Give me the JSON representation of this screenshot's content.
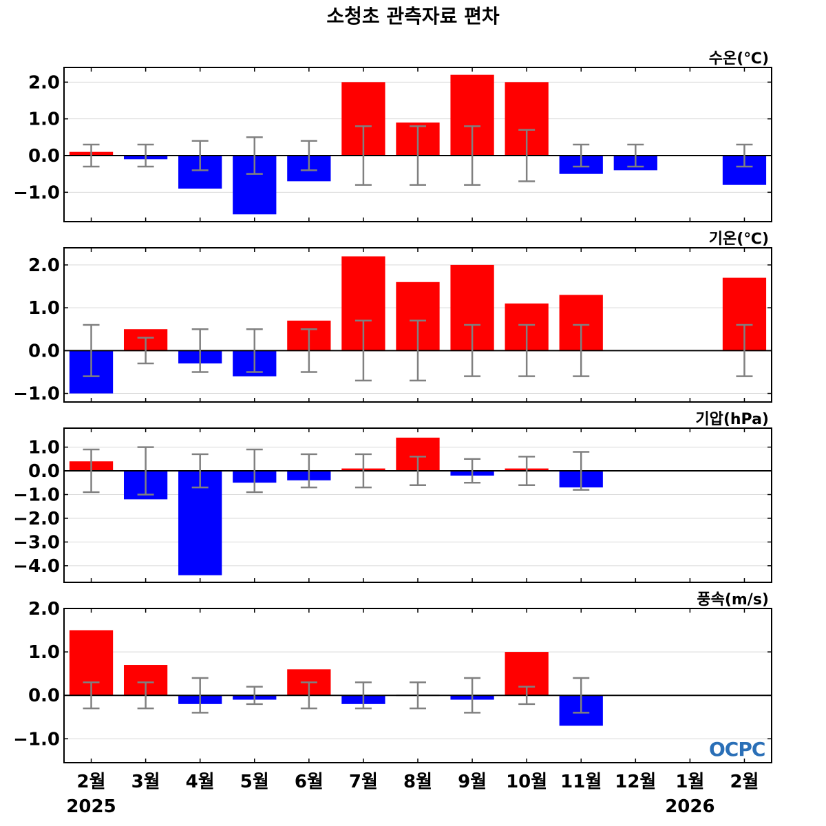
{
  "title": "소청초 관측자료 편차",
  "logo": "OCPC",
  "colors": {
    "positive": "#ff0000",
    "negative": "#0000ff",
    "error_bar": "#808080",
    "grid": "#d9d9d9"
  },
  "x_axis": {
    "months": [
      "2월",
      "3월",
      "4월",
      "5월",
      "6월",
      "7월",
      "8월",
      "9월",
      "10월",
      "11월",
      "12월",
      "1월",
      "2월"
    ],
    "years": [
      {
        "label": "2025",
        "index": 0
      },
      {
        "label": "2026",
        "index": 11
      }
    ]
  },
  "chart_data": [
    {
      "type": "bar",
      "unit_label": "수온(℃)",
      "categories": [
        "2월",
        "3월",
        "4월",
        "5월",
        "6월",
        "7월",
        "8월",
        "9월",
        "10월",
        "11월",
        "12월",
        "1월",
        "2월"
      ],
      "values": [
        0.1,
        -0.1,
        -0.9,
        -1.6,
        -0.7,
        2.0,
        0.9,
        2.2,
        2.0,
        -0.5,
        -0.4,
        null,
        -0.8
      ],
      "error": [
        0.3,
        0.3,
        0.4,
        0.5,
        0.4,
        0.8,
        0.8,
        0.8,
        0.7,
        0.3,
        0.3,
        null,
        0.3
      ],
      "ylim": [
        -1.8,
        2.4
      ],
      "yticks": [
        -1.0,
        0.0,
        1.0,
        2.0
      ],
      "ytick_labels": [
        "−1.0",
        "0.0",
        "1.0",
        "2.0"
      ]
    },
    {
      "type": "bar",
      "unit_label": "기온(℃)",
      "categories": [
        "2월",
        "3월",
        "4월",
        "5월",
        "6월",
        "7월",
        "8월",
        "9월",
        "10월",
        "11월",
        "12월",
        "1월",
        "2월"
      ],
      "values": [
        -1.0,
        0.5,
        -0.3,
        -0.6,
        0.7,
        2.2,
        1.6,
        2.0,
        1.1,
        1.3,
        null,
        null,
        1.7
      ],
      "error": [
        0.6,
        0.3,
        0.5,
        0.5,
        0.5,
        0.7,
        0.7,
        0.6,
        0.6,
        0.6,
        null,
        null,
        0.6
      ],
      "ylim": [
        -1.2,
        2.4
      ],
      "yticks": [
        -1.0,
        0.0,
        1.0,
        2.0
      ],
      "ytick_labels": [
        "−1.0",
        "0.0",
        "1.0",
        "2.0"
      ]
    },
    {
      "type": "bar",
      "unit_label": "기압(hPa)",
      "categories": [
        "2월",
        "3월",
        "4월",
        "5월",
        "6월",
        "7월",
        "8월",
        "9월",
        "10월",
        "11월",
        "12월",
        "1월",
        "2월"
      ],
      "values": [
        0.4,
        -1.2,
        -4.4,
        -0.5,
        -0.4,
        0.1,
        1.4,
        -0.2,
        0.1,
        -0.7,
        null,
        null,
        null
      ],
      "error": [
        0.9,
        1.0,
        0.7,
        0.9,
        0.7,
        0.7,
        0.6,
        0.5,
        0.6,
        0.8,
        null,
        null,
        null
      ],
      "ylim": [
        -4.7,
        1.8
      ],
      "yticks": [
        -4.0,
        -3.0,
        -2.0,
        -1.0,
        0.0,
        1.0
      ],
      "ytick_labels": [
        "−4.0",
        "−3.0",
        "−2.0",
        "−1.0",
        "0.0",
        "1.0"
      ]
    },
    {
      "type": "bar",
      "unit_label": "풍속(m/s)",
      "categories": [
        "2월",
        "3월",
        "4월",
        "5월",
        "6월",
        "7월",
        "8월",
        "9월",
        "10월",
        "11월",
        "12월",
        "1월",
        "2월"
      ],
      "values": [
        1.5,
        0.7,
        -0.2,
        -0.1,
        0.6,
        -0.2,
        0.0,
        -0.1,
        1.0,
        -0.7,
        null,
        null,
        null
      ],
      "error": [
        0.3,
        0.3,
        0.4,
        0.2,
        0.3,
        0.3,
        0.3,
        0.4,
        0.2,
        0.4,
        null,
        null,
        null
      ],
      "ylim": [
        -1.55,
        2.0
      ],
      "yticks": [
        -1.0,
        0.0,
        1.0,
        2.0
      ],
      "ytick_labels": [
        "−1.0",
        "0.0",
        "1.0",
        "2.0"
      ]
    }
  ]
}
